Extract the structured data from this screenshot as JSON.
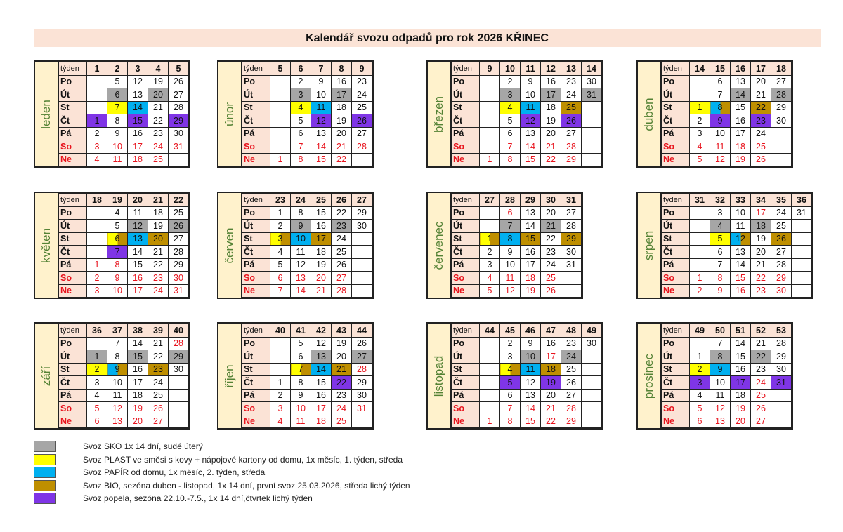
{
  "title": "Kalendář svozu odpadů pro rok 2026 KŘINEC",
  "week_label": "týden",
  "day_labels": [
    "Po",
    "Út",
    "St",
    "Čt",
    "Pá",
    "So",
    "Ne"
  ],
  "colors": {
    "g": "#a6a6a6",
    "y": "#ffff00",
    "b": "#00b0f0",
    "o": "#bf8f00",
    "p": "#7f35e6"
  },
  "months": [
    {
      "name": "leden",
      "weeks": [
        "1",
        "2",
        "3",
        "4",
        "5"
      ],
      "rows": [
        [
          "",
          "5",
          "12",
          "19",
          "26"
        ],
        [
          "",
          "6g",
          "13",
          "20g",
          "27"
        ],
        [
          "",
          "7y",
          "14b",
          "21",
          "28"
        ],
        [
          "1p",
          "8",
          "15p",
          "22",
          "29p"
        ],
        [
          "2",
          "9",
          "16",
          "23",
          "30"
        ],
        [
          "3",
          "10",
          "17",
          "24",
          "31"
        ],
        [
          "4",
          "11",
          "18",
          "25",
          ""
        ]
      ]
    },
    {
      "name": "únor",
      "weeks": [
        "5",
        "6",
        "7",
        "8",
        "9"
      ],
      "rows": [
        [
          "",
          "2",
          "9",
          "16",
          "23"
        ],
        [
          "",
          "3g",
          "10",
          "17g",
          "24"
        ],
        [
          "",
          "4y",
          "11b",
          "18",
          "25"
        ],
        [
          "",
          "5",
          "12p",
          "19",
          "26p"
        ],
        [
          "",
          "6",
          "13",
          "20",
          "27"
        ],
        [
          "",
          "7",
          "14",
          "21",
          "28"
        ],
        [
          "1",
          "8",
          "15",
          "22",
          ""
        ]
      ]
    },
    {
      "name": "březen",
      "weeks": [
        "9",
        "10",
        "11",
        "12",
        "13",
        "14"
      ],
      "rows": [
        [
          "",
          "2",
          "9",
          "16",
          "23",
          "30"
        ],
        [
          "",
          "3g",
          "10",
          "17g",
          "24",
          "31g"
        ],
        [
          "",
          "4y",
          "11b",
          "18",
          "25o",
          ""
        ],
        [
          "",
          "5",
          "12p",
          "19",
          "26p",
          ""
        ],
        [
          "",
          "6",
          "13",
          "20",
          "27",
          ""
        ],
        [
          "",
          "7",
          "14",
          "21",
          "28",
          ""
        ],
        [
          "1",
          "8",
          "15",
          "22",
          "29",
          ""
        ]
      ]
    },
    {
      "name": "duben",
      "weeks": [
        "14",
        "15",
        "16",
        "17",
        "18"
      ],
      "rows": [
        [
          "",
          "6",
          "13",
          "20",
          "27"
        ],
        [
          "",
          "7",
          "14g",
          "21",
          "28g"
        ],
        [
          "1y",
          "8bo",
          "15",
          "22o",
          "29"
        ],
        [
          "2",
          "9p",
          "16",
          "23p",
          "30"
        ],
        [
          "3",
          "10",
          "17",
          "24",
          ""
        ],
        [
          "4",
          "11",
          "18",
          "25",
          ""
        ],
        [
          "5",
          "12",
          "19",
          "26",
          ""
        ]
      ]
    },
    {
      "name": "květen",
      "weeks": [
        "18",
        "19",
        "20",
        "21",
        "22"
      ],
      "rows": [
        [
          "",
          "4",
          "11",
          "18",
          "25"
        ],
        [
          "",
          "5",
          "12g",
          "19",
          "26g"
        ],
        [
          "",
          "6yo",
          "13b",
          "20o",
          "27"
        ],
        [
          "",
          "7p",
          "14",
          "21",
          "28"
        ],
        [
          "1r",
          "8r",
          "15",
          "22",
          "29"
        ],
        [
          "2",
          "9",
          "16",
          "23",
          "30"
        ],
        [
          "3",
          "10",
          "17",
          "24",
          "31"
        ]
      ]
    },
    {
      "name": "červen",
      "weeks": [
        "23",
        "24",
        "25",
        "26",
        "27"
      ],
      "rows": [
        [
          "1",
          "8",
          "15",
          "22",
          "29"
        ],
        [
          "2",
          "9g",
          "16",
          "23g",
          "30"
        ],
        [
          "3yo",
          "10b",
          "17o",
          "24",
          ""
        ],
        [
          "4",
          "11",
          "18",
          "25",
          ""
        ],
        [
          "5",
          "12",
          "19",
          "26",
          ""
        ],
        [
          "6",
          "13",
          "20",
          "27",
          ""
        ],
        [
          "7",
          "14",
          "21",
          "28",
          ""
        ]
      ]
    },
    {
      "name": "červenec",
      "weeks": [
        "27",
        "28",
        "29",
        "30",
        "31"
      ],
      "rows": [
        [
          "",
          "6r",
          "13",
          "20",
          "27"
        ],
        [
          "",
          "7g",
          "14",
          "21g",
          "28"
        ],
        [
          "1yo",
          "8b",
          "15o",
          "22",
          "29o"
        ],
        [
          "2",
          "9",
          "16",
          "23",
          "30"
        ],
        [
          "3",
          "10",
          "17",
          "24",
          "31"
        ],
        [
          "4",
          "11",
          "18",
          "25",
          ""
        ],
        [
          "5",
          "12",
          "19",
          "26",
          ""
        ]
      ]
    },
    {
      "name": "srpen",
      "weeks": [
        "31",
        "32",
        "33",
        "34",
        "35",
        "36"
      ],
      "rows": [
        [
          "",
          "3",
          "10",
          "17r",
          "24",
          "31"
        ],
        [
          "",
          "4g",
          "11",
          "18g",
          "25",
          ""
        ],
        [
          "",
          "5y",
          "12bo",
          "19",
          "26o",
          ""
        ],
        [
          "",
          "6",
          "13",
          "20",
          "27",
          ""
        ],
        [
          "",
          "7",
          "14",
          "21",
          "28",
          ""
        ],
        [
          "1",
          "8",
          "15",
          "22",
          "29",
          ""
        ],
        [
          "2",
          "9",
          "16",
          "23",
          "30",
          ""
        ]
      ]
    },
    {
      "name": "září",
      "weeks": [
        "36",
        "37",
        "38",
        "39",
        "40"
      ],
      "rows": [
        [
          "",
          "7",
          "14",
          "21",
          "28r"
        ],
        [
          "1g",
          "8",
          "15g",
          "22",
          "29g"
        ],
        [
          "2y",
          "9bo",
          "16",
          "23o",
          "30"
        ],
        [
          "3",
          "10",
          "17",
          "24",
          ""
        ],
        [
          "4",
          "11",
          "18",
          "25",
          ""
        ],
        [
          "5",
          "12",
          "19",
          "26",
          ""
        ],
        [
          "6",
          "13",
          "20",
          "27",
          ""
        ]
      ]
    },
    {
      "name": "říjen",
      "weeks": [
        "40",
        "41",
        "42",
        "43",
        "44"
      ],
      "rows": [
        [
          "",
          "5",
          "12",
          "19",
          "26"
        ],
        [
          "",
          "6",
          "13g",
          "20",
          "27g"
        ],
        [
          "",
          "7yo",
          "14b",
          "21o",
          "28r"
        ],
        [
          "1",
          "8",
          "15",
          "22p",
          "29"
        ],
        [
          "2",
          "9",
          "16",
          "23",
          "30"
        ],
        [
          "3",
          "10",
          "17",
          "24",
          "31"
        ],
        [
          "4",
          "11",
          "18",
          "25",
          ""
        ]
      ]
    },
    {
      "name": "listopad",
      "weeks": [
        "44",
        "45",
        "46",
        "47",
        "48",
        "49"
      ],
      "rows": [
        [
          "",
          "2",
          "9",
          "16",
          "23",
          "30"
        ],
        [
          "",
          "3",
          "10g",
          "17r",
          "24g",
          ""
        ],
        [
          "",
          "4yo",
          "11b",
          "18o",
          "25",
          ""
        ],
        [
          "",
          "5p",
          "12",
          "19p",
          "26",
          ""
        ],
        [
          "",
          "6",
          "13",
          "20",
          "27",
          ""
        ],
        [
          "",
          "7",
          "14",
          "21",
          "28",
          ""
        ],
        [
          "1",
          "8",
          "15",
          "22",
          "29",
          ""
        ]
      ]
    },
    {
      "name": "prosinec",
      "weeks": [
        "49",
        "50",
        "51",
        "52",
        "53"
      ],
      "rows": [
        [
          "",
          "7",
          "14",
          "21",
          "28"
        ],
        [
          "1",
          "8g",
          "15",
          "22g",
          "29"
        ],
        [
          "2y",
          "9b",
          "16",
          "23",
          "30"
        ],
        [
          "3p",
          "10",
          "17p",
          "24r",
          "31p"
        ],
        [
          "4",
          "11",
          "18",
          "25r",
          ""
        ],
        [
          "5",
          "12",
          "19",
          "26",
          ""
        ],
        [
          "6",
          "13",
          "20",
          "27",
          ""
        ]
      ]
    }
  ],
  "legend": [
    {
      "color": "#a6a6a6",
      "text": "Svoz SKO 1x 14 dní, sudé úterý"
    },
    {
      "color": "#ffff00",
      "text": "Svoz PLAST ve směsi s kovy + nápojové kartony od domu, 1x měsíc, 1. týden, středa"
    },
    {
      "color": "#00b0f0",
      "text": "Svoz PAPÍR od domu, 1x měsíc, 2. týden, středa"
    },
    {
      "color": "#bf8f00",
      "text": "Svoz BIO, sezóna duben - listopad, 1x 14 dní, první svoz 25.03.2026, středa lichý týden"
    },
    {
      "color": "#7f35e6",
      "text": "Svoz popela, sezóna 22.10.-7.5., 1x 14 dní,čtvrtek lichý týden"
    }
  ]
}
